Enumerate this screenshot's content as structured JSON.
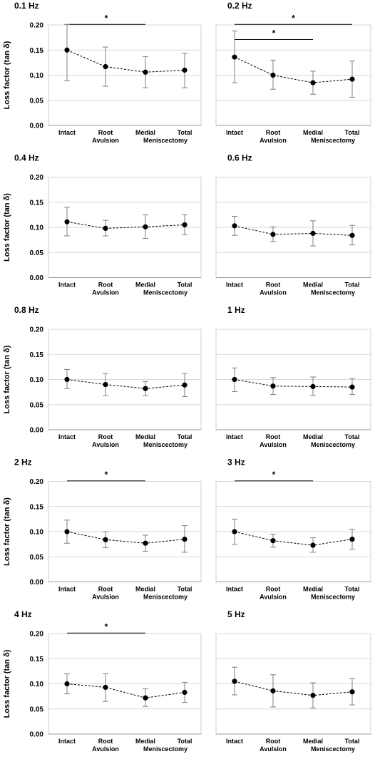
{
  "figure": {
    "y_axis_label": "Loss factor (tan δ)"
  },
  "chart_data": [
    {
      "type": "line",
      "title": "0.1 Hz",
      "categories": [
        "Intact",
        "Root Avulsion",
        "Medial Meniscectomy",
        "Total"
      ],
      "ylabel": "Loss factor (tan δ)",
      "ylim": [
        0,
        0.2
      ],
      "yticks": [
        "0.00",
        "0.05",
        "0.10",
        "0.15",
        "0.20"
      ],
      "grid": true,
      "series": [
        {
          "values": [
            0.15,
            0.117,
            0.106,
            0.11
          ],
          "error_low": [
            0.089,
            0.078,
            0.075,
            0.075
          ],
          "error_high": [
            0.201,
            0.156,
            0.137,
            0.144
          ]
        }
      ],
      "significance": [
        {
          "from": 0,
          "to": 2,
          "y": 0.201,
          "label": "*"
        }
      ]
    },
    {
      "type": "line",
      "title": "0.2 Hz",
      "categories": [
        "Intact",
        "Root Avulsion",
        "Medial Meniscectomy",
        "Total"
      ],
      "ylabel": "",
      "ylim": [
        0,
        0.2
      ],
      "yticks": [
        "0.00",
        "0.05",
        "0.10",
        "0.15",
        "0.20"
      ],
      "grid": true,
      "series": [
        {
          "values": [
            0.136,
            0.1,
            0.085,
            0.092
          ],
          "error_low": [
            0.085,
            0.072,
            0.062,
            0.056
          ],
          "error_high": [
            0.188,
            0.13,
            0.108,
            0.128
          ]
        }
      ],
      "significance": [
        {
          "from": 0,
          "to": 3,
          "y": 0.201,
          "label": "*"
        },
        {
          "from": 0,
          "to": 2,
          "y": 0.171,
          "label": "*"
        }
      ]
    },
    {
      "type": "line",
      "title": "0.4 Hz",
      "categories": [
        "Intact",
        "Root Avulsion",
        "Medial Meniscectomy",
        "Total"
      ],
      "ylabel": "Loss factor (tan δ)",
      "ylim": [
        0,
        0.2
      ],
      "yticks": [
        "0.00",
        "0.05",
        "0.10",
        "0.15",
        "0.20"
      ],
      "grid": true,
      "series": [
        {
          "values": [
            0.111,
            0.098,
            0.101,
            0.105
          ],
          "error_low": [
            0.083,
            0.083,
            0.078,
            0.085
          ],
          "error_high": [
            0.14,
            0.114,
            0.125,
            0.125
          ]
        }
      ],
      "significance": []
    },
    {
      "type": "line",
      "title": "0.6 Hz",
      "categories": [
        "Intact",
        "Root Avulsion",
        "Medial Meniscectomy",
        "Total"
      ],
      "ylabel": "",
      "ylim": [
        0,
        0.2
      ],
      "yticks": [
        "0.00",
        "0.05",
        "0.10",
        "0.15",
        "0.20"
      ],
      "grid": true,
      "series": [
        {
          "values": [
            0.103,
            0.086,
            0.088,
            0.084
          ],
          "error_low": [
            0.084,
            0.072,
            0.063,
            0.065
          ],
          "error_high": [
            0.122,
            0.101,
            0.113,
            0.104
          ]
        }
      ],
      "significance": []
    },
    {
      "type": "line",
      "title": "0.8 Hz",
      "categories": [
        "Intact",
        "Root Avulsion",
        "Medial Meniscectomy",
        "Total"
      ],
      "ylabel": "Loss factor (tan δ)",
      "ylim": [
        0,
        0.2
      ],
      "yticks": [
        "0.00",
        "0.05",
        "0.10",
        "0.15",
        "0.20"
      ],
      "grid": true,
      "series": [
        {
          "values": [
            0.1,
            0.09,
            0.082,
            0.089
          ],
          "error_low": [
            0.082,
            0.068,
            0.068,
            0.066
          ],
          "error_high": [
            0.12,
            0.112,
            0.096,
            0.112
          ]
        }
      ],
      "significance": []
    },
    {
      "type": "line",
      "title": "1 Hz",
      "categories": [
        "Intact",
        "Root Avulsion",
        "Medial Meniscectomy",
        "Total"
      ],
      "ylabel": "",
      "ylim": [
        0,
        0.2
      ],
      "yticks": [
        "0.00",
        "0.05",
        "0.10",
        "0.15",
        "0.20"
      ],
      "grid": true,
      "series": [
        {
          "values": [
            0.1,
            0.087,
            0.086,
            0.085
          ],
          "error_low": [
            0.076,
            0.07,
            0.068,
            0.07
          ],
          "error_high": [
            0.123,
            0.104,
            0.105,
            0.102
          ]
        }
      ],
      "significance": []
    },
    {
      "type": "line",
      "title": "2 Hz",
      "categories": [
        "Intact",
        "Root Avulsion",
        "Medial Meniscectomy",
        "Total"
      ],
      "ylabel": "Loss factor (tan δ)",
      "ylim": [
        0,
        0.2
      ],
      "yticks": [
        "0.00",
        "0.05",
        "0.10",
        "0.15",
        "0.20"
      ],
      "grid": true,
      "series": [
        {
          "values": [
            0.1,
            0.084,
            0.077,
            0.085
          ],
          "error_low": [
            0.077,
            0.068,
            0.061,
            0.059
          ],
          "error_high": [
            0.123,
            0.1,
            0.093,
            0.112
          ]
        }
      ],
      "significance": [
        {
          "from": 0,
          "to": 2,
          "y": 0.201,
          "label": "*"
        }
      ]
    },
    {
      "type": "line",
      "title": "3 Hz",
      "categories": [
        "Intact",
        "Root Avulsion",
        "Medial Meniscectomy",
        "Total"
      ],
      "ylabel": "",
      "ylim": [
        0,
        0.2
      ],
      "yticks": [
        "0.00",
        "0.05",
        "0.10",
        "0.15",
        "0.20"
      ],
      "grid": true,
      "series": [
        {
          "values": [
            0.1,
            0.082,
            0.073,
            0.085
          ],
          "error_low": [
            0.075,
            0.069,
            0.059,
            0.065
          ],
          "error_high": [
            0.125,
            0.095,
            0.088,
            0.105
          ]
        }
      ],
      "significance": [
        {
          "from": 0,
          "to": 2,
          "y": 0.201,
          "label": "*"
        }
      ]
    },
    {
      "type": "line",
      "title": "4 Hz",
      "categories": [
        "Intact",
        "Root Avulsion",
        "Medial Meniscectomy",
        "Total"
      ],
      "ylabel": "Loss factor (tan δ)",
      "ylim": [
        0,
        0.2
      ],
      "yticks": [
        "0.00",
        "0.05",
        "0.10",
        "0.15",
        "0.20"
      ],
      "grid": true,
      "series": [
        {
          "values": [
            0.1,
            0.093,
            0.072,
            0.083
          ],
          "error_low": [
            0.08,
            0.065,
            0.055,
            0.063
          ],
          "error_high": [
            0.12,
            0.12,
            0.09,
            0.103
          ]
        }
      ],
      "significance": [
        {
          "from": 0,
          "to": 2,
          "y": 0.201,
          "label": "*"
        }
      ]
    },
    {
      "type": "line",
      "title": "5 Hz",
      "categories": [
        "Intact",
        "Root Avulsion",
        "Medial Meniscectomy",
        "Total"
      ],
      "ylabel": "",
      "ylim": [
        0,
        0.2
      ],
      "yticks": [
        "0.00",
        "0.05",
        "0.10",
        "0.15",
        "0.20"
      ],
      "grid": true,
      "series": [
        {
          "values": [
            0.105,
            0.086,
            0.077,
            0.084
          ],
          "error_low": [
            0.078,
            0.054,
            0.052,
            0.058
          ],
          "error_high": [
            0.133,
            0.118,
            0.102,
            0.11
          ]
        }
      ],
      "significance": []
    }
  ]
}
